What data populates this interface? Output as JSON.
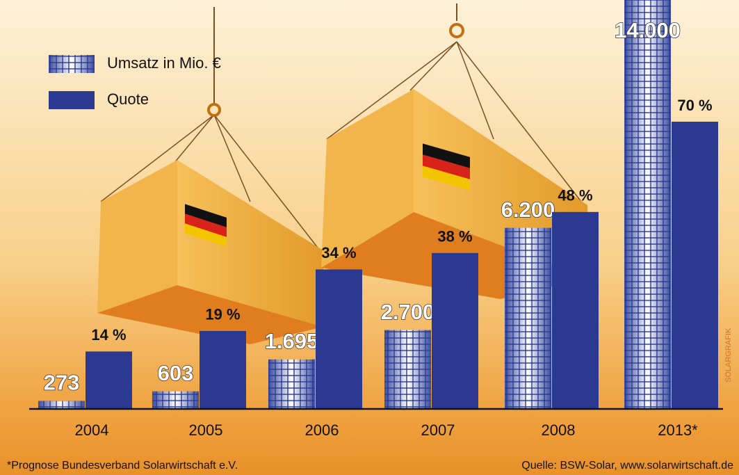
{
  "chart_data": {
    "type": "bar",
    "categories": [
      "2004",
      "2005",
      "2006",
      "2007",
      "2008",
      "2013*"
    ],
    "series": [
      {
        "name": "Umsatz in Mio. €",
        "color": "#2b3990",
        "values": [
          273,
          603,
          1695,
          2700,
          6200,
          14000
        ],
        "value_labels": [
          "273",
          "603",
          "1.695",
          "2.700",
          "6.200",
          "14.000"
        ]
      },
      {
        "name": "Quote",
        "color": "#2b3990",
        "values": [
          14,
          19,
          34,
          38,
          48,
          70
        ],
        "value_labels": [
          "14 %",
          "19 %",
          "34 %",
          "38 %",
          "48 %",
          "70 %"
        ]
      }
    ],
    "footnote": "*Prognose Bundesverband Solarwirtschaft e.V.",
    "source": "Quelle: BSW-Solar, www.solarwirtschaft.de",
    "credit": "SOLARGRAFIK"
  }
}
